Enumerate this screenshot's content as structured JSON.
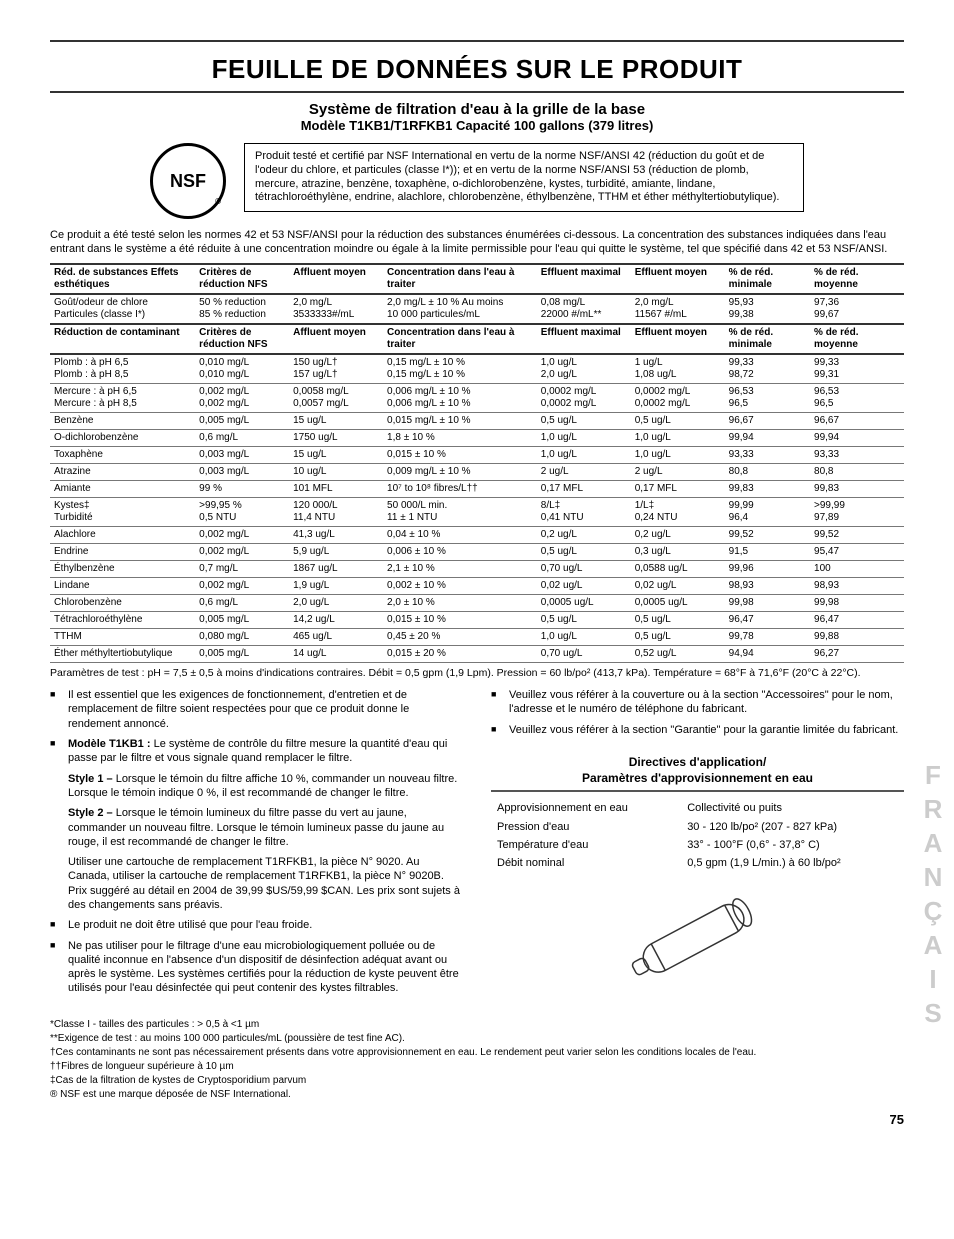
{
  "page": {
    "title": "FEUILLE DE DONNÉES SUR LE PRODUIT",
    "subtitle1": "Système de filtration d'eau à la grille de la base",
    "subtitle2": "Modèle T1KB1/T1RFKB1 Capacité 100 gallons (379 litres)",
    "nsf_label": "NSF",
    "cert_text": "Produit testé et certifié par NSF International en vertu de la norme NSF/ANSI 42 (réduction du goût et de l'odeur du chlore, et particules (classe I*)); et en vertu de la norme NSF/ANSI 53 (réduction de plomb, mercure, atrazine, benzène, toxaphène, o-dichlorobenzène, kystes, turbidité, amiante, lindane, tétrachloroéthylène, endrine, alachlore, chlorobenzène, éthylbenzène, TTHM et éther méthyltertiobutylique).",
    "intro": "Ce produit a été testé selon les normes 42 et 53 NSF/ANSI pour la réduction des substances énumérées ci-dessous. La concentration des substances indiquées dans l'eau entrant dans le système a été réduite à une concentration moindre ou égale à la limite permissible pour l'eau qui quitte le système, tel que spécifié dans 42 et 53 NSF/ANSI.",
    "side_label": "FRANÇAIS",
    "page_number": "75"
  },
  "table": {
    "headers1": [
      "Réd. de substances Effets esthétiques",
      "Critères de réduction NFS",
      "Affluent moyen",
      "Concentration dans l'eau à traiter",
      "Effluent maximal",
      "Effluent moyen",
      "% de réd. minimale",
      "% de réd. moyenne"
    ],
    "rows1": [
      [
        "Goût/odeur de chlore\nParticules (classe I*)",
        "50 % reduction\n85 % reduction",
        "2,0 mg/L\n3533333#/mL",
        "2,0 mg/L ± 10 % Au moins\n10 000 particules/mL",
        "0,08 mg/L\n22000 #/mL**",
        "2,0 mg/L\n11567 #/mL",
        "95,93\n99,38",
        "97,36\n99,67"
      ]
    ],
    "headers2": [
      "Réduction de contaminant",
      "Critères de réduction NFS",
      "Affluent moyen",
      "Concentration dans l'eau à traiter",
      "Effluent maximal",
      "Effluent moyen",
      "% de réd. minimale",
      "% de réd. moyenne"
    ],
    "rows2": [
      [
        "Plomb : à pH 6,5\nPlomb : à pH 8,5",
        "0,010 mg/L\n0,010 mg/L",
        "150 ug/L†\n157 ug/L†",
        "0,15 mg/L ± 10 %\n0,15 mg/L ± 10 %",
        "1,0 ug/L\n2,0 ug/L",
        "1 ug/L\n1,08 ug/L",
        "99,33\n98,72",
        "99,33\n99,31"
      ],
      [
        "Mercure : à pH 6,5\nMercure : à pH 8,5",
        "0,002 mg/L\n0,002 mg/L",
        "0,0058 mg/L\n0,0057 mg/L",
        "0,006 mg/L ± 10 %\n0,006 mg/L ± 10 %",
        "0,0002 mg/L\n0,0002 mg/L",
        "0,0002 mg/L\n0,0002 mg/L",
        "96,53\n96,5",
        "96,53\n96,5"
      ],
      [
        "Benzène",
        "0,005 mg/L",
        "15 ug/L",
        "0,015 mg/L ± 10 %",
        "0,5 ug/L",
        "0,5 ug/L",
        "96,67",
        "96,67"
      ],
      [
        "O-dichlorobenzène",
        "0,6 mg/L",
        "1750 ug/L",
        "1,8 ± 10 %",
        "1,0 ug/L",
        "1,0 ug/L",
        "99,94",
        "99,94"
      ],
      [
        "Toxaphène",
        "0,003 mg/L",
        "15 ug/L",
        "0,015 ± 10 %",
        "1,0 ug/L",
        "1,0 ug/L",
        "93,33",
        "93,33"
      ],
      [
        "Atrazine",
        "0,003 mg/L",
        "10 ug/L",
        "0,009 mg/L ± 10 %",
        "2 ug/L",
        "2 ug/L",
        "80,8",
        "80,8"
      ],
      [
        "Amiante",
        "99 %",
        "101 MFL",
        "10⁷ to 10⁸ fibres/L††",
        "0,17 MFL",
        "0,17 MFL",
        "99,83",
        "99,83"
      ],
      [
        "Kystes‡\nTurbidité",
        ">99,95 %\n0,5 NTU",
        "120 000/L\n11,4 NTU",
        "50 000/L min.\n11 ± 1 NTU",
        "8/L‡\n0,41 NTU",
        "1/L‡\n0,24 NTU",
        "99,99\n96,4",
        ">99,99\n97,89"
      ],
      [
        "Alachlore",
        "0,002 mg/L",
        "41,3 ug/L",
        "0,04 ± 10 %",
        "0,2 ug/L",
        "0,2 ug/L",
        "99,52",
        "99,52"
      ],
      [
        "Endrine",
        "0,002 mg/L",
        "5,9 ug/L",
        "0,006 ± 10 %",
        "0,5 ug/L",
        "0,3 ug/L",
        "91,5",
        "95,47"
      ],
      [
        "Éthylbenzène",
        "0,7 mg/L",
        "1867 ug/L",
        "2,1 ± 10 %",
        "0,70 ug/L",
        "0,0588 ug/L",
        "99,96",
        "100"
      ],
      [
        "Lindane",
        "0,002 mg/L",
        "1,9 ug/L",
        "0,002 ± 10 %",
        "0,02 ug/L",
        "0,02 ug/L",
        "98,93",
        "98,93"
      ],
      [
        "Chlorobenzène",
        "0,6 mg/L",
        "2,0 ug/L",
        "2,0 ± 10 %",
        "0,0005 ug/L",
        "0,0005 ug/L",
        "99,98",
        "99,98"
      ],
      [
        "Tétrachloroéthylène",
        "0,005 mg/L",
        "14,2 ug/L",
        "0,015 ± 10 %",
        "0,5 ug/L",
        "0,5 ug/L",
        "96,47",
        "96,47"
      ],
      [
        "TTHM",
        "0,080 mg/L",
        "465 ug/L",
        "0,45 ± 20 %",
        "1,0 ug/L",
        "0,5 ug/L",
        "99,78",
        "99,88"
      ],
      [
        "Éther méthyltertiobutylique",
        "0,005 mg/L",
        "14 ug/L",
        "0,015 ± 20 %",
        "0,70 ug/L",
        "0,52 ug/L",
        "94,94",
        "96,27"
      ]
    ],
    "col_widths": [
      "17%",
      "11%",
      "11%",
      "18%",
      "11%",
      "11%",
      "10%",
      "11%"
    ]
  },
  "params_line": "Paramètres de test : pH = 7,5 ± 0,5 à moins d'indications contraires. Débit = 0,5 gpm (1,9 Lpm). Pression = 60 lb/po² (413,7 kPa). Température = 68°F à 71,6°F (20°C à 22°C).",
  "notes": {
    "left": [
      {
        "type": "bullet",
        "text": "Il est essentiel que les exigences de fonctionnement, d'entretien et de remplacement de filtre soient respectées pour que ce produit donne le rendement annoncé."
      },
      {
        "type": "bullet",
        "html": "<b>Modèle T1KB1 :</b> Le système de contrôle du filtre mesure la quantité d'eau qui passe par le filtre et vous signale quand remplacer le filtre."
      },
      {
        "type": "para",
        "html": "<b>Style 1 –</b> Lorsque le témoin du filtre affiche 10 %, commander un nouveau filtre. Lorsque le témoin indique 0 %, il est recommandé de changer le filtre."
      },
      {
        "type": "para",
        "html": "<b>Style 2 –</b> Lorsque le témoin lumineux du filtre passe du vert au jaune, commander un nouveau filtre. Lorsque le témoin lumineux passe du jaune au rouge, il est recommandé de changer le filtre."
      },
      {
        "type": "para",
        "text": "Utiliser une cartouche de remplacement T1RFKB1, la pièce N° 9020. Au Canada, utiliser la cartouche de remplacement T1RFKB1, la pièce N° 9020B. Prix suggéré au détail en 2004 de 39,99 $US/59,99 $CAN. Les prix sont sujets à des changements sans préavis."
      },
      {
        "type": "bullet",
        "text": "Le produit ne doit être utilisé que pour l'eau froide."
      },
      {
        "type": "bullet",
        "text": "Ne pas utiliser pour le filtrage d'une eau microbiologiquement polluée ou de qualité inconnue en l'absence d'un dispositif de désinfection adéquat avant ou après le système. Les systèmes certifiés pour la réduction de kyste peuvent être utilisés pour l'eau désinfectée qui peut contenir des kystes filtrables."
      }
    ],
    "right_bullets": [
      "Veuillez vous référer à la couverture ou à la section \"Accessoires\" pour le nom, l'adresse et le numéro de téléphone du fabricant.",
      "Veuillez vous référer à la section \"Garantie\" pour la garantie limitée du fabricant."
    ]
  },
  "guidelines": {
    "title": "Directives d'application/\nParamètres d'approvisionnement en eau",
    "rows": [
      [
        "Approvisionnement en eau",
        "Collectivité ou puits"
      ],
      [
        "Pression d'eau",
        "30 - 120 lb/po² (207 - 827 kPa)"
      ],
      [
        "Température d'eau",
        "33° - 100°F (0,6° - 37,8° C)"
      ],
      [
        "Débit nominal",
        "0,5 gpm (1,9 L/min.) à 60 lb/po²"
      ]
    ]
  },
  "footnotes": [
    "*Classe I - tailles des particules : > 0,5 à <1 µm",
    "**Exigence de test : au moins 100 000 particules/mL (poussière de test fine AC).",
    "†Ces contaminants ne sont pas nécessairement présents dans votre approvisionnement en eau. Le rendement peut varier selon les conditions locales de l'eau.",
    "††Fibres de longueur supérieure à 10 µm",
    "‡Cas de la filtration de kystes de Cryptosporidium parvum",
    "® NSF est une marque déposée de NSF International."
  ]
}
